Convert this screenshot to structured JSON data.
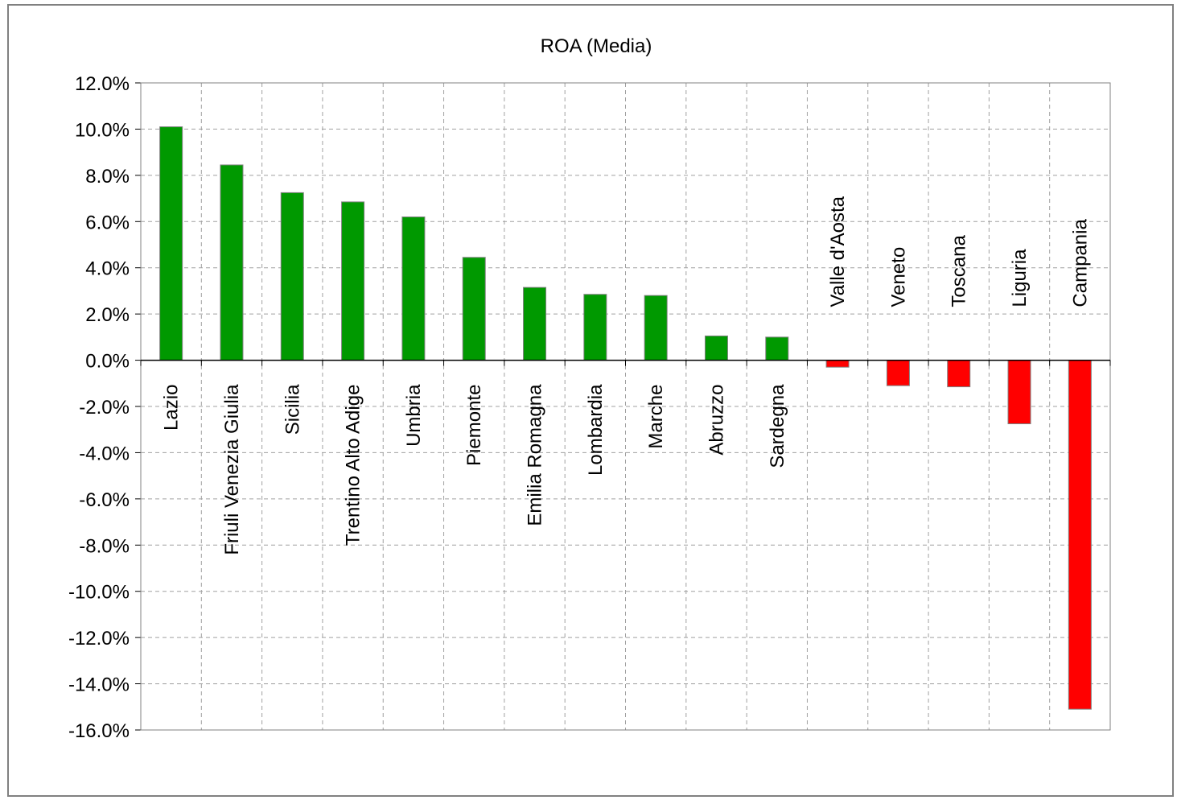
{
  "chart_data": {
    "type": "bar",
    "title": "ROA (Media)",
    "xlabel": "",
    "ylabel": "",
    "ylim": [
      -16,
      12
    ],
    "y_ticks": [
      "12.0%",
      "10.0%",
      "8.0%",
      "6.0%",
      "4.0%",
      "2.0%",
      "0.0%",
      "-2.0%",
      "-4.0%",
      "-6.0%",
      "-8.0%",
      "-10.0%",
      "-12.0%",
      "-14.0%",
      "-16.0%"
    ],
    "grid": true,
    "categories": [
      "Lazio",
      "Friuli Venezia Giulia",
      "Sicilia",
      "Trentino Alto Adige",
      "Umbria",
      "Piemonte",
      "Emilia Romagna",
      "Lombardia",
      "Marche",
      "Abruzzo",
      "Sardegna",
      "Valle d'Aosta",
      "Veneto",
      "Toscana",
      "Liguria",
      "Campania"
    ],
    "values": [
      10.1,
      8.45,
      7.25,
      6.85,
      6.2,
      4.45,
      3.15,
      2.85,
      2.8,
      1.05,
      1.0,
      -0.3,
      -1.1,
      -1.15,
      -2.75,
      -15.1
    ],
    "colors": {
      "positive": "#009900",
      "negative": "#ff0000",
      "bar_edge": "#808080"
    }
  }
}
